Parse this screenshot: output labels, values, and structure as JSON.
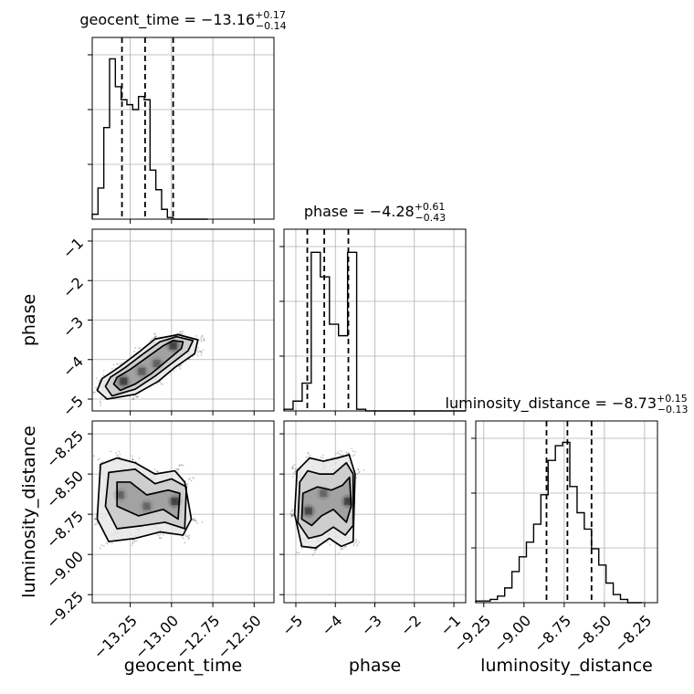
{
  "chart_data": {
    "type": "corner",
    "grid": true,
    "parameters": [
      {
        "name": "geocent_time",
        "xlabel": "geocent_time",
        "range": [
          -13.48,
          -12.38
        ],
        "ticks": [
          -13.25,
          -13.0,
          -12.75,
          -12.5
        ],
        "tick_labels": [
          "−13.25",
          "−13.00",
          "−12.75",
          "−12.50"
        ],
        "title": {
          "prefix": "geocent_time = ",
          "value": "−13.16",
          "plus": "+0.17",
          "minus": "−0.14"
        },
        "quantiles": [
          -13.3,
          -13.16,
          -12.99
        ],
        "histogram": {
          "bin_edges": [
            -13.48,
            -13.445,
            -13.41,
            -13.375,
            -13.34,
            -13.305,
            -13.27,
            -13.235,
            -13.2,
            -13.165,
            -13.13,
            -13.095,
            -13.06,
            -13.025,
            -12.99,
            -12.955,
            -12.92,
            -12.885,
            -12.85,
            -12.815,
            -12.78
          ],
          "counts": [
            0.03,
            0.19,
            0.56,
            0.98,
            0.81,
            0.73,
            0.7,
            0.67,
            0.75,
            0.73,
            0.3,
            0.18,
            0.06,
            0.01,
            0.0,
            0.0,
            0.0,
            0.0,
            0.0,
            0.0
          ]
        }
      },
      {
        "name": "phase",
        "ylabel": "phase",
        "xlabel": "phase",
        "range": [
          -5.3,
          -0.7
        ],
        "ticks": [
          -5,
          -4,
          -3,
          -2,
          -1
        ],
        "tick_labels": [
          "−5",
          "−4",
          "−3",
          "−2",
          "−1"
        ],
        "title": {
          "prefix": "phase = ",
          "value": "−4.28",
          "plus": "+0.61",
          "minus": "−0.43"
        },
        "quantiles": [
          -4.71,
          -4.28,
          -3.67
        ],
        "histogram": {
          "bin_edges": [
            -5.3,
            -5.07,
            -4.84,
            -4.61,
            -4.38,
            -4.15,
            -3.92,
            -3.69,
            -3.46,
            -3.23,
            -3.0,
            -2.77,
            -2.54,
            -2.31,
            -2.08,
            -1.85,
            -1.62,
            -1.39,
            -1.16,
            -0.93,
            -0.7
          ],
          "counts": [
            0.01,
            0.06,
            0.17,
            0.97,
            0.82,
            0.53,
            0.46,
            0.97,
            0.01,
            0.0,
            0.0,
            0.0,
            0.0,
            0.0,
            0.0,
            0.0,
            0.0,
            0.0,
            0.0,
            0.0
          ]
        }
      },
      {
        "name": "luminosity_distance",
        "ylabel": "luminosity_distance",
        "xlabel": "luminosity_distance",
        "range": [
          -9.3,
          -8.17
        ],
        "ticks": [
          -9.25,
          -9.0,
          -8.75,
          -8.5,
          -8.25
        ],
        "tick_labels": [
          "−9.25",
          "−9.00",
          "−8.75",
          "−8.50",
          "−8.25"
        ],
        "title": {
          "prefix": "luminosity_distance = ",
          "value": "−8.73",
          "plus": "+0.15",
          "minus": "−0.13"
        },
        "quantiles": [
          -8.86,
          -8.73,
          -8.58
        ],
        "histogram": {
          "bin_edges": [
            -9.3,
            -9.255,
            -9.21,
            -9.165,
            -9.12,
            -9.075,
            -9.03,
            -8.985,
            -8.94,
            -8.895,
            -8.85,
            -8.805,
            -8.76,
            -8.715,
            -8.67,
            -8.625,
            -8.58,
            -8.535,
            -8.49,
            -8.445,
            -8.4,
            -8.355,
            -8.31,
            -8.265
          ],
          "counts": [
            0.01,
            0.01,
            0.02,
            0.04,
            0.09,
            0.19,
            0.28,
            0.37,
            0.48,
            0.66,
            0.87,
            0.96,
            0.98,
            0.71,
            0.55,
            0.45,
            0.33,
            0.23,
            0.12,
            0.05,
            0.02,
            0.0,
            0.0
          ]
        }
      }
    ],
    "pairs": [
      {
        "x": "geocent_time",
        "y": "phase",
        "density_centers": [
          [
            -13.29,
            -4.55,
            1.0
          ],
          [
            -13.18,
            -4.3,
            0.6
          ],
          [
            -13.09,
            -4.1,
            0.55
          ],
          [
            -12.99,
            -3.65,
            1.0
          ]
        ],
        "contours": [
          [
            [
              -13.35,
              -4.62
            ],
            [
              -13.31,
              -4.78
            ],
            [
              -13.22,
              -4.62
            ],
            [
              -13.12,
              -4.35
            ],
            [
              -13.02,
              -4.0
            ],
            [
              -12.94,
              -3.72
            ],
            [
              -12.93,
              -3.55
            ],
            [
              -12.99,
              -3.52
            ],
            [
              -13.05,
              -3.65
            ],
            [
              -13.15,
              -3.95
            ],
            [
              -13.25,
              -4.25
            ],
            [
              -13.33,
              -4.45
            ]
          ],
          [
            [
              -13.4,
              -4.68
            ],
            [
              -13.36,
              -4.92
            ],
            [
              -13.22,
              -4.75
            ],
            [
              -13.1,
              -4.42
            ],
            [
              -13.0,
              -4.1
            ],
            [
              -12.9,
              -3.78
            ],
            [
              -12.87,
              -3.52
            ],
            [
              -12.97,
              -3.42
            ],
            [
              -13.07,
              -3.55
            ],
            [
              -13.17,
              -3.85
            ],
            [
              -13.28,
              -4.2
            ],
            [
              -13.37,
              -4.45
            ]
          ],
          [
            [
              -13.45,
              -4.78
            ],
            [
              -13.39,
              -5.0
            ],
            [
              -13.22,
              -4.88
            ],
            [
              -13.08,
              -4.55
            ],
            [
              -12.98,
              -4.2
            ],
            [
              -12.86,
              -3.85
            ],
            [
              -12.84,
              -3.5
            ],
            [
              -12.96,
              -3.37
            ],
            [
              -13.1,
              -3.48
            ],
            [
              -13.2,
              -3.82
            ],
            [
              -13.32,
              -4.2
            ],
            [
              -13.42,
              -4.48
            ]
          ]
        ]
      },
      {
        "x": "geocent_time",
        "y": "luminosity_distance",
        "density_centers": [
          [
            -13.31,
            -8.63,
            0.55
          ],
          [
            -13.15,
            -8.7,
            0.5
          ],
          [
            -12.98,
            -8.67,
            1.0
          ]
        ],
        "contours": [
          [
            [
              -13.33,
              -8.55
            ],
            [
              -13.33,
              -8.7
            ],
            [
              -13.2,
              -8.76
            ],
            [
              -13.05,
              -8.72
            ],
            [
              -12.96,
              -8.78
            ],
            [
              -12.95,
              -8.62
            ],
            [
              -13.02,
              -8.6
            ],
            [
              -13.15,
              -8.63
            ],
            [
              -13.25,
              -8.55
            ]
          ],
          [
            [
              -13.38,
              -8.49
            ],
            [
              -13.4,
              -8.7
            ],
            [
              -13.33,
              -8.84
            ],
            [
              -13.17,
              -8.82
            ],
            [
              -13.04,
              -8.8
            ],
            [
              -12.92,
              -8.84
            ],
            [
              -12.91,
              -8.58
            ],
            [
              -13.0,
              -8.53
            ],
            [
              -13.1,
              -8.56
            ],
            [
              -13.22,
              -8.47
            ]
          ],
          [
            [
              -13.43,
              -8.44
            ],
            [
              -13.45,
              -8.78
            ],
            [
              -13.38,
              -8.92
            ],
            [
              -13.22,
              -8.9
            ],
            [
              -13.07,
              -8.86
            ],
            [
              -12.93,
              -8.88
            ],
            [
              -12.88,
              -8.78
            ],
            [
              -12.92,
              -8.55
            ],
            [
              -12.98,
              -8.48
            ],
            [
              -13.1,
              -8.5
            ],
            [
              -13.22,
              -8.43
            ],
            [
              -13.33,
              -8.4
            ]
          ]
        ]
      },
      {
        "x": "phase",
        "y": "luminosity_distance",
        "density_centers": [
          [
            -4.68,
            -8.73,
            0.9
          ],
          [
            -4.3,
            -8.62,
            0.5
          ],
          [
            -3.68,
            -8.67,
            1.0
          ]
        ],
        "contours": [
          [
            [
              -4.82,
              -8.62
            ],
            [
              -4.85,
              -8.78
            ],
            [
              -4.6,
              -8.82
            ],
            [
              -4.35,
              -8.76
            ],
            [
              -4.05,
              -8.72
            ],
            [
              -3.72,
              -8.8
            ],
            [
              -3.6,
              -8.7
            ],
            [
              -3.64,
              -8.52
            ],
            [
              -3.82,
              -8.57
            ],
            [
              -4.1,
              -8.6
            ],
            [
              -4.45,
              -8.58
            ]
          ],
          [
            [
              -4.9,
              -8.55
            ],
            [
              -4.95,
              -8.8
            ],
            [
              -4.68,
              -8.9
            ],
            [
              -4.35,
              -8.88
            ],
            [
              -4.05,
              -8.83
            ],
            [
              -3.75,
              -8.88
            ],
            [
              -3.55,
              -8.82
            ],
            [
              -3.55,
              -8.5
            ],
            [
              -3.72,
              -8.43
            ],
            [
              -4.05,
              -8.5
            ],
            [
              -4.4,
              -8.5
            ],
            [
              -4.7,
              -8.48
            ]
          ],
          [
            [
              -4.97,
              -8.48
            ],
            [
              -5.03,
              -8.75
            ],
            [
              -4.85,
              -8.95
            ],
            [
              -4.5,
              -8.96
            ],
            [
              -4.15,
              -8.9
            ],
            [
              -3.85,
              -8.95
            ],
            [
              -3.55,
              -8.92
            ],
            [
              -3.5,
              -8.5
            ],
            [
              -3.65,
              -8.38
            ],
            [
              -3.95,
              -8.4
            ],
            [
              -4.3,
              -8.42
            ],
            [
              -4.65,
              -8.4
            ]
          ]
        ]
      }
    ]
  }
}
